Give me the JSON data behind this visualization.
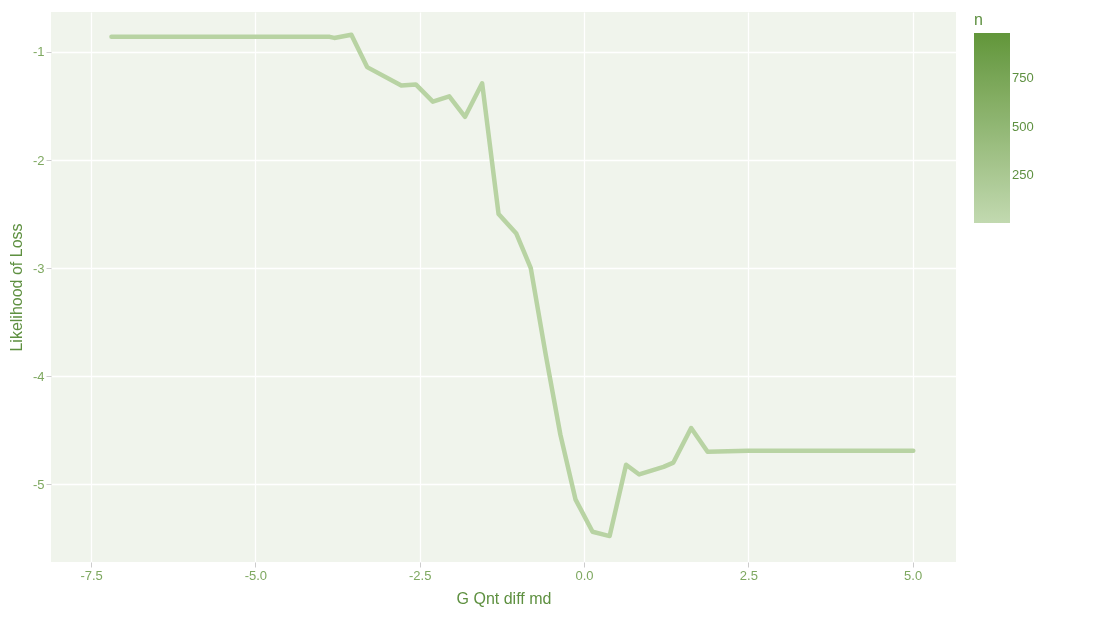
{
  "chart_data": {
    "type": "line",
    "xlabel": "G Qnt diff md",
    "ylabel": "Likelihood of Loss",
    "clabel": "n",
    "series": [
      {
        "color": "#b8d3a3",
        "x": [
          -7.19,
          -6.49,
          -5.52,
          -3.87,
          -3.8,
          -3.54,
          -3.3,
          -2.78,
          -2.56,
          -2.3,
          -2.05,
          -1.81,
          -1.55,
          -1.3,
          -1.03,
          -0.81,
          -0.58,
          -0.36,
          -0.13,
          0.13,
          0.39,
          0.64,
          0.84,
          1.21,
          1.36,
          1.63,
          1.88,
          2.5,
          3.9,
          5.01
        ],
        "values": [
          -0.86,
          -0.86,
          -0.86,
          -0.86,
          -0.87,
          -0.84,
          -1.14,
          -1.31,
          -1.3,
          -1.46,
          -1.41,
          -1.6,
          -1.29,
          -2.5,
          -2.68,
          -3.0,
          -3.81,
          -4.54,
          -5.14,
          -5.44,
          -5.48,
          -4.82,
          -4.91,
          -4.84,
          -4.8,
          -4.48,
          -4.7,
          -4.69,
          -4.69,
          -4.69
        ]
      }
    ],
    "colors": [
      "#c2d9b0",
      "#62963a"
    ],
    "clim": [
      1,
      985
    ],
    "cticks": [
      250,
      500,
      750
    ],
    "xlim": [
      -8.11,
      5.66
    ],
    "xticks": [
      {
        "value": -7.5,
        "label": "-7.5"
      },
      {
        "value": -5,
        "label": "-5.0"
      },
      {
        "value": -2.5,
        "label": "-2.5"
      },
      {
        "value": 0,
        "label": "0.0"
      },
      {
        "value": 2.5,
        "label": "2.5"
      },
      {
        "value": 5,
        "label": "5.0"
      }
    ],
    "ylim": [
      -5.72,
      -0.63
    ],
    "yticks": [
      -5,
      -4,
      -3,
      -2,
      -1
    ],
    "grid": true
  }
}
